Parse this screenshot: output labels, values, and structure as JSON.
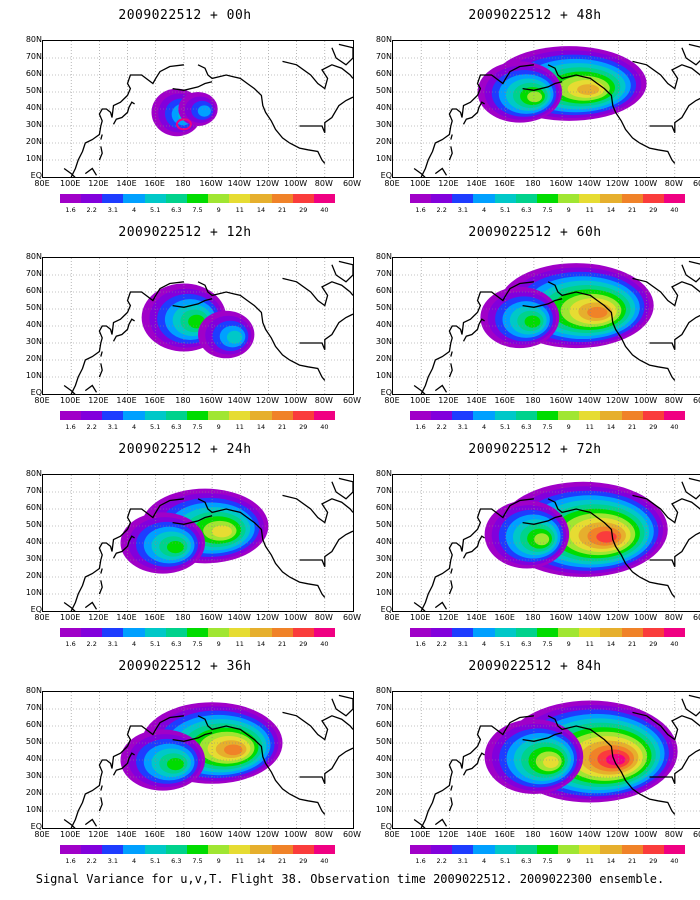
{
  "chart_data": [
    {
      "type": "heatmap",
      "title": "2009022512 + 00h"
    },
    {
      "type": "heatmap",
      "title": "2009022512 + 48h"
    },
    {
      "type": "heatmap",
      "title": "2009022512 + 12h"
    },
    {
      "type": "heatmap",
      "title": "2009022512 + 60h"
    },
    {
      "type": "heatmap",
      "title": "2009022512 + 24h"
    },
    {
      "type": "heatmap",
      "title": "2009022512 + 72h"
    },
    {
      "type": "heatmap",
      "title": "2009022512 + 36h"
    },
    {
      "type": "heatmap",
      "title": "2009022512 + 84h"
    }
  ],
  "lat_labels": [
    "80N",
    "70N",
    "60N",
    "50N",
    "40N",
    "30N",
    "20N",
    "10N",
    "EQ"
  ],
  "lon_labels": [
    "80E",
    "100E",
    "120E",
    "140E",
    "160E",
    "180",
    "160W",
    "140W",
    "120W",
    "100W",
    "80W",
    "60W"
  ],
  "colorbar": {
    "ticks": [
      "1.6",
      "2.2",
      "3.1",
      "4",
      "5.1",
      "6.3",
      "7.5",
      "9",
      "11",
      "14",
      "21",
      "29",
      "40"
    ],
    "colors": [
      "#a000c8",
      "#8200dc",
      "#1e3cff",
      "#00a0ff",
      "#00c8c8",
      "#00d28c",
      "#00dc00",
      "#a0e632",
      "#e6dc32",
      "#e6af2d",
      "#f08228",
      "#fa3c3c",
      "#f00082"
    ]
  },
  "caption": "Signal Variance for u,v,T. Flight 38. Observation time 2009022512. 2009022300 ensemble."
}
